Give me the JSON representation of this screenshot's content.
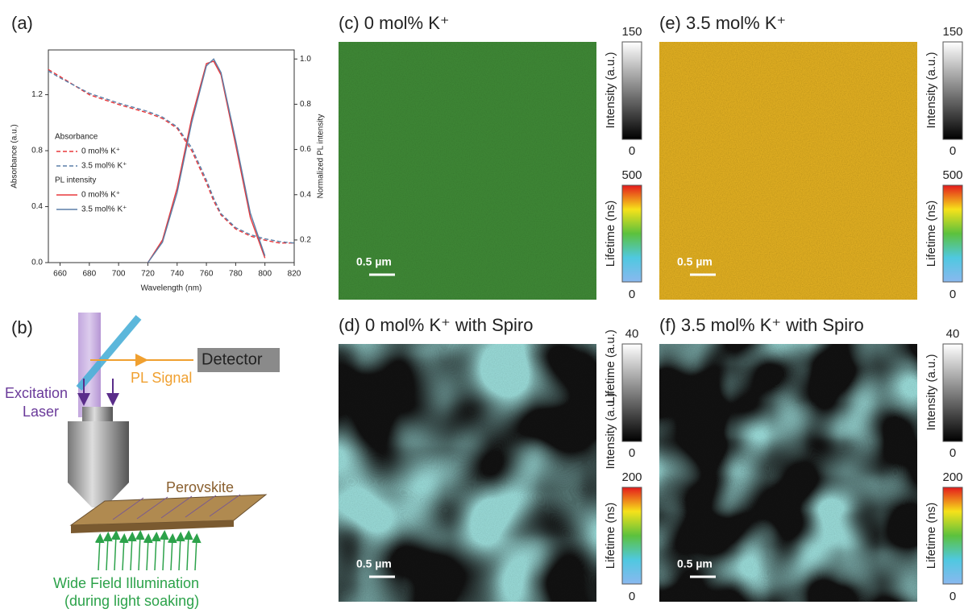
{
  "chart_data": {
    "type": "line",
    "xlabel": "Wavelength (nm)",
    "ylabel": "Absorbance (a.u.)",
    "y2label": "Normalized PL intensity",
    "x": [
      652,
      660,
      680,
      700,
      720,
      730,
      740,
      750,
      760,
      765,
      770,
      780,
      790,
      800,
      810,
      820
    ],
    "series": [
      {
        "name": "0 mol% K⁺",
        "color": "#e8383b",
        "dashed": true,
        "values": [
          1.38,
          1.33,
          1.2,
          1.13,
          1.07,
          1.03,
          0.96,
          0.8,
          0.57,
          0.44,
          0.34,
          0.24,
          0.19,
          0.16,
          0.14,
          0.14
        ]
      },
      {
        "name": "3.5 mol% K⁺",
        "color": "#5b7fa8",
        "dashed": true,
        "values": [
          1.37,
          1.32,
          1.21,
          1.14,
          1.08,
          1.04,
          0.97,
          0.82,
          0.59,
          0.46,
          0.35,
          0.25,
          0.2,
          0.17,
          0.15,
          0.14
        ]
      },
      {
        "name": "0 mol% K⁺",
        "color": "#e8383b",
        "axis": "y2",
        "values": [
          null,
          null,
          null,
          null,
          0.1,
          0.2,
          0.43,
          0.74,
          0.98,
          0.99,
          0.93,
          0.62,
          0.3,
          0.12,
          null,
          null
        ]
      },
      {
        "name": "3.5 mol% K⁺",
        "color": "#5b7fa8",
        "axis": "y2",
        "values": [
          null,
          null,
          null,
          null,
          0.1,
          0.19,
          0.41,
          0.72,
          0.97,
          1.0,
          0.94,
          0.64,
          0.32,
          0.13,
          null,
          null
        ]
      }
    ],
    "legend_groups": [
      "Absorbance",
      "PL intensity"
    ],
    "xlim": [
      652,
      820
    ],
    "xticks": [
      660,
      680,
      700,
      720,
      740,
      760,
      780,
      800,
      820
    ],
    "ylim": [
      0,
      1.52
    ],
    "yticks": [
      {
        "value": 0,
        "label": "0.0"
      },
      0.4,
      0.8,
      1.2
    ],
    "y2lim": [
      0.1,
      1.04
    ],
    "y2ticks": [
      0.2,
      0.4,
      0.6,
      0.8,
      {
        "value": 1,
        "label": "1.0"
      }
    ]
  },
  "figure": {
    "a": {
      "label": "(a)"
    },
    "b": {
      "label": "(b)",
      "detector": "Detector",
      "pl_signal": "PL Signal",
      "excitation": "Excitation",
      "laser": "Laser",
      "sample": "Perovskite",
      "illumination": "Wide Field Illumination",
      "illumination_note": "(during light soaking)"
    },
    "c": {
      "label": "(c) 0 mol% K⁺",
      "scale_bar": "0.5 µm",
      "intensity_label": "Intensity (a.u.)",
      "intensity_max": 150,
      "intensity_min": 0,
      "lifetime_label": "Lifetime (ns)",
      "lifetime_max": 500,
      "lifetime_min": 0
    },
    "d": {
      "label": "(d) 0 mol% K⁺ with Spiro",
      "scale_bar": "0.5 µm",
      "intensity_label": "Intensity (a.u.)",
      "intensity_label_top": "Lifetime (a.u.)",
      "intensity_max": 40,
      "intensity_min": 0,
      "lifetime_label": "Lifetime (ns)",
      "lifetime_max": 200,
      "lifetime_min": 0
    },
    "e": {
      "label": "(e) 3.5 mol% K⁺",
      "scale_bar": "0.5 µm",
      "intensity_label": "Intensity (a.u.)",
      "intensity_max": 150,
      "intensity_min": 0,
      "lifetime_label": "Lifetime (ns)",
      "lifetime_max": 500,
      "lifetime_min": 0
    },
    "f": {
      "label": "(f) 3.5 mol% K⁺ with Spiro",
      "scale_bar": "0.5 µm",
      "intensity_label": "Intensity (a.u.)",
      "intensity_max": 40,
      "intensity_min": 0,
      "lifetime_label": "Lifetime (ns)",
      "lifetime_max": 200,
      "lifetime_min": 0
    }
  }
}
